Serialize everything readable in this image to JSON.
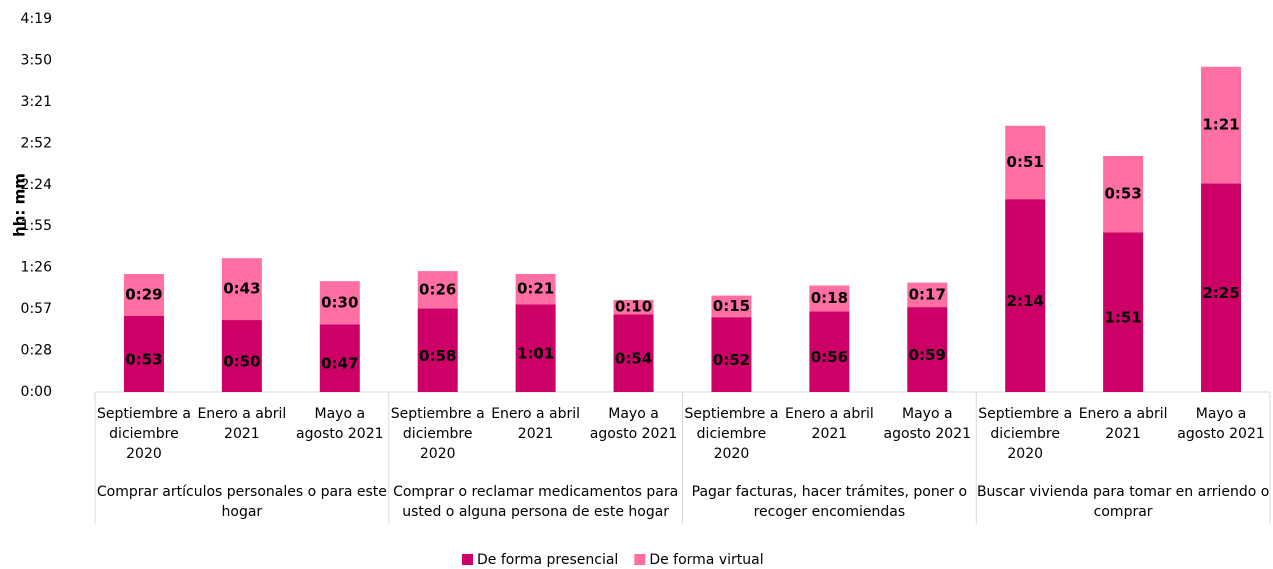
{
  "chart_data": {
    "type": "bar",
    "stacked": true,
    "y_label": "hh: mm",
    "categories": [
      "Septiembre a diciembre 2020",
      "Enero a abril 2021",
      "Mayo a agosto 2021",
      "Septiembre a diciembre 2020",
      "Enero a abril 2021",
      "Mayo a agosto 2021",
      "Septiembre a diciembre 2020",
      "Enero a abril 2021",
      "Mayo a agosto 2021",
      "Septiembre a diciembre 2020",
      "Enero a abril 2021",
      "Mayo a agosto 2021"
    ],
    "groups": [
      "Comprar artículos personales o para este hogar",
      "Comprar o reclamar medicamentos para usted o alguna persona de este hogar",
      "Pagar facturas, hacer trámites, poner o recoger encomiendas",
      "Buscar vivienda para tomar en arriendo o comprar"
    ],
    "series": [
      {
        "name": "De forma presencial",
        "color": "#cc0066",
        "values": [
          53,
          50,
          47,
          58,
          61,
          54,
          52,
          56,
          59,
          134,
          111,
          145
        ],
        "value_labels": [
          "0:53",
          "0:50",
          "0:47",
          "0:58",
          "1:01",
          "0:54",
          "0:52",
          "0:56",
          "0:59",
          "2:14",
          "1:51",
          "2:25"
        ]
      },
      {
        "name": "De forma virtual",
        "color": "#ff6fa3",
        "values": [
          29,
          43,
          30,
          26,
          21,
          10,
          15,
          18,
          17,
          51,
          53,
          81
        ],
        "value_labels": [
          "0:29",
          "0:43",
          "0:30",
          "0:26",
          "0:21",
          "0:10",
          "0:15",
          "0:18",
          "0:17",
          "0:51",
          "0:53",
          "1:21"
        ]
      }
    ],
    "ylim": [
      0,
      259.2
    ],
    "yticks": [
      {
        "value": 0,
        "label": "0:00"
      },
      {
        "value": 28.8,
        "label": "0:28"
      },
      {
        "value": 57.6,
        "label": "0:57"
      },
      {
        "value": 86.4,
        "label": "1:26"
      },
      {
        "value": 115.2,
        "label": "1:55"
      },
      {
        "value": 144,
        "label": "2:24"
      },
      {
        "value": 172.8,
        "label": "2:52"
      },
      {
        "value": 201.6,
        "label": "3:21"
      },
      {
        "value": 230.4,
        "label": "3:50"
      },
      {
        "value": 259.2,
        "label": "4:19"
      }
    ],
    "grid": false,
    "legend": "bottom"
  }
}
